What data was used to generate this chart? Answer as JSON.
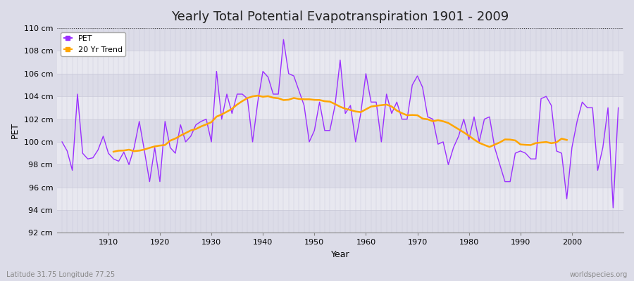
{
  "title": "Yearly Total Potential Evapotranspiration 1901 - 2009",
  "xlabel": "Year",
  "ylabel": "PET",
  "bottom_left_label": "Latitude 31.75 Longitude 77.25",
  "bottom_right_label": "worldspecies.org",
  "legend_labels": [
    "PET",
    "20 Yr Trend"
  ],
  "pet_color": "#9B30FF",
  "trend_color": "#FFA500",
  "background_color": "#DCDCE8",
  "plot_bg_color": "#E8E8F0",
  "band_color_light": "#DCDCE8",
  "band_color_dark": "#E8E8F0",
  "ylim": [
    92,
    110
  ],
  "ytick_step": 2,
  "years": [
    1901,
    1902,
    1903,
    1904,
    1905,
    1906,
    1907,
    1908,
    1909,
    1910,
    1911,
    1912,
    1913,
    1914,
    1915,
    1916,
    1917,
    1918,
    1919,
    1920,
    1921,
    1922,
    1923,
    1924,
    1925,
    1926,
    1927,
    1928,
    1929,
    1930,
    1931,
    1932,
    1933,
    1934,
    1935,
    1936,
    1937,
    1938,
    1939,
    1940,
    1941,
    1942,
    1943,
    1944,
    1945,
    1946,
    1947,
    1948,
    1949,
    1950,
    1951,
    1952,
    1953,
    1954,
    1955,
    1956,
    1957,
    1958,
    1959,
    1960,
    1961,
    1962,
    1963,
    1964,
    1965,
    1966,
    1967,
    1968,
    1969,
    1970,
    1971,
    1972,
    1973,
    1974,
    1975,
    1976,
    1977,
    1978,
    1979,
    1980,
    1981,
    1982,
    1983,
    1984,
    1985,
    1986,
    1987,
    1988,
    1989,
    1990,
    1991,
    1992,
    1993,
    1994,
    1995,
    1996,
    1997,
    1998,
    1999,
    2000,
    2001,
    2002,
    2003,
    2004,
    2005,
    2006,
    2007,
    2008,
    2009
  ],
  "pet_values": [
    100.0,
    99.2,
    97.5,
    104.2,
    99.0,
    98.5,
    98.6,
    99.3,
    100.5,
    99.0,
    98.5,
    98.3,
    99.1,
    98.0,
    99.5,
    101.8,
    99.2,
    96.5,
    99.5,
    96.5,
    101.8,
    99.5,
    99.0,
    101.5,
    100.0,
    100.5,
    101.5,
    101.8,
    102.0,
    100.0,
    106.2,
    102.0,
    104.2,
    102.5,
    104.2,
    104.2,
    103.8,
    100.0,
    103.5,
    106.2,
    105.7,
    104.2,
    104.2,
    109.0,
    106.0,
    105.8,
    104.5,
    103.2,
    100.0,
    101.0,
    103.5,
    101.0,
    101.0,
    103.2,
    107.2,
    102.5,
    103.2,
    100.0,
    102.5,
    106.0,
    103.5,
    103.5,
    100.0,
    104.2,
    102.5,
    103.5,
    102.0,
    102.0,
    105.0,
    105.8,
    104.8,
    102.2,
    102.0,
    99.8,
    100.0,
    98.0,
    99.5,
    100.5,
    102.0,
    100.2,
    102.2,
    100.0,
    102.0,
    102.2,
    99.5,
    98.0,
    96.5,
    96.5,
    99.0,
    99.2,
    99.0,
    98.5,
    98.5,
    103.8,
    104.0,
    103.2,
    99.2,
    99.0,
    95.0,
    99.5,
    101.8,
    103.5,
    103.0,
    103.0,
    97.5,
    99.5,
    103.0,
    94.2,
    103.0
  ],
  "grid_color": "#C8C8D8",
  "dotted_line_y": 110,
  "title_fontsize": 13,
  "axis_label_fontsize": 9,
  "tick_fontsize": 8,
  "legend_fontsize": 8
}
